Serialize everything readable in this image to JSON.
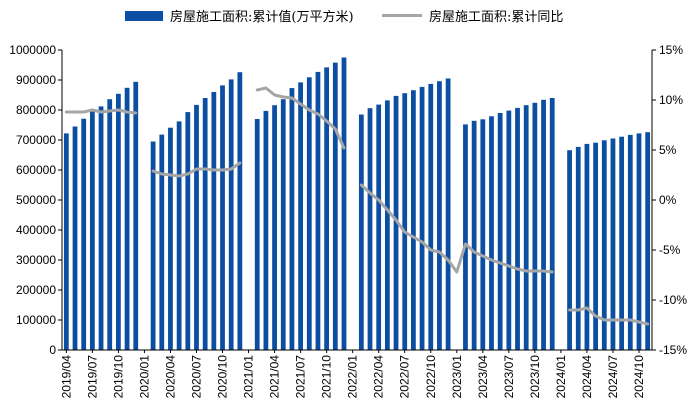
{
  "chart_data": {
    "type": "bar",
    "title": "",
    "xlabel": "",
    "ylabel": "",
    "ylim": [
      0,
      1000000
    ],
    "y2lim": [
      -15,
      15
    ],
    "y_ticks": [
      "0",
      "100000",
      "200000",
      "300000",
      "400000",
      "500000",
      "600000",
      "700000",
      "800000",
      "900000",
      "1000000"
    ],
    "y2_ticks": [
      "-15%",
      "-10%",
      "-5%",
      "0%",
      "5%",
      "10%",
      "15%"
    ],
    "categories": [
      "2019/04",
      "2019/05",
      "2019/06",
      "2019/07",
      "2019/08",
      "2019/09",
      "2019/10",
      "2019/11",
      "2019/12",
      "2020/01",
      "2020/02",
      "2020/03",
      "2020/04",
      "2020/05",
      "2020/06",
      "2020/07",
      "2020/08",
      "2020/09",
      "2020/10",
      "2020/11",
      "2020/12",
      "2021/01",
      "2021/02",
      "2021/03",
      "2021/04",
      "2021/05",
      "2021/06",
      "2021/07",
      "2021/08",
      "2021/09",
      "2021/10",
      "2021/11",
      "2021/12",
      "2022/01",
      "2022/02",
      "2022/03",
      "2022/04",
      "2022/05",
      "2022/06",
      "2022/07",
      "2022/08",
      "2022/09",
      "2022/10",
      "2022/11",
      "2022/12",
      "2023/01",
      "2023/02",
      "2023/03",
      "2023/04",
      "2023/05",
      "2023/06",
      "2023/07",
      "2023/08",
      "2023/09",
      "2023/10",
      "2023/11",
      "2023/12",
      "2024/01",
      "2024/02",
      "2024/03",
      "2024/04",
      "2024/05",
      "2024/06",
      "2024/07",
      "2024/08",
      "2024/09",
      "2024/10",
      "2024/11"
    ],
    "x_tick_labels": [
      "2019/04",
      "2019/07",
      "2019/10",
      "2020/01",
      "2020/04",
      "2020/07",
      "2020/10",
      "2021/01",
      "2021/04",
      "2021/07",
      "2021/10",
      "2022/01",
      "2022/04",
      "2022/07",
      "2022/10",
      "2023/01",
      "2023/04",
      "2023/07",
      "2023/10",
      "2024/01",
      "2024/04",
      "2024/07",
      "2024/10"
    ],
    "series": [
      {
        "name": "房屋施工面积:累计值(万平方米)",
        "type": "bar",
        "axis": "left",
        "color": "#0b4ea2",
        "values": [
          722000,
          745000,
          771000,
          797000,
          812000,
          836000,
          854000,
          874000,
          894000,
          null,
          695000,
          718000,
          741000,
          762000,
          793000,
          817000,
          840000,
          860000,
          882000,
          902000,
          926000,
          null,
          770000,
          797000,
          816000,
          836000,
          873000,
          892000,
          909000,
          927000,
          942000,
          958000,
          975000,
          null,
          785000,
          806000,
          818000,
          832000,
          847000,
          856000,
          866000,
          877000,
          887000,
          896000,
          905000,
          null,
          752000,
          764000,
          769000,
          779000,
          790000,
          798000,
          807000,
          816000,
          824000,
          834000,
          840000,
          null,
          666000,
          677000,
          687000,
          691000,
          699000,
          705000,
          711000,
          717000,
          722000,
          726000
        ]
      },
      {
        "name": "房屋施工面积:累计同比",
        "type": "line",
        "axis": "right",
        "unit": "%",
        "color": "#a6a6a6",
        "values": [
          8.8,
          8.8,
          8.8,
          9.0,
          8.8,
          8.9,
          9.0,
          8.8,
          8.7,
          null,
          2.9,
          2.6,
          2.5,
          2.4,
          2.6,
          3.1,
          3.1,
          3.0,
          3.0,
          3.1,
          3.7,
          null,
          11.0,
          11.2,
          10.5,
          10.3,
          10.2,
          9.6,
          9.0,
          8.6,
          7.9,
          7.1,
          5.2,
          null,
          1.5,
          0.7,
          0.0,
          -1.0,
          -2.0,
          -3.2,
          -3.7,
          -4.2,
          -5.0,
          -5.2,
          -6.0,
          -7.2,
          -4.4,
          -5.2,
          -5.6,
          -6.0,
          -6.3,
          -6.6,
          -6.9,
          -7.1,
          -7.1,
          -7.1,
          -7.2,
          null,
          -11.0,
          -11.0,
          -10.8,
          -11.6,
          -12.0,
          -12.0,
          -12.0,
          -12.0,
          -12.2,
          -12.4
        ]
      }
    ]
  }
}
